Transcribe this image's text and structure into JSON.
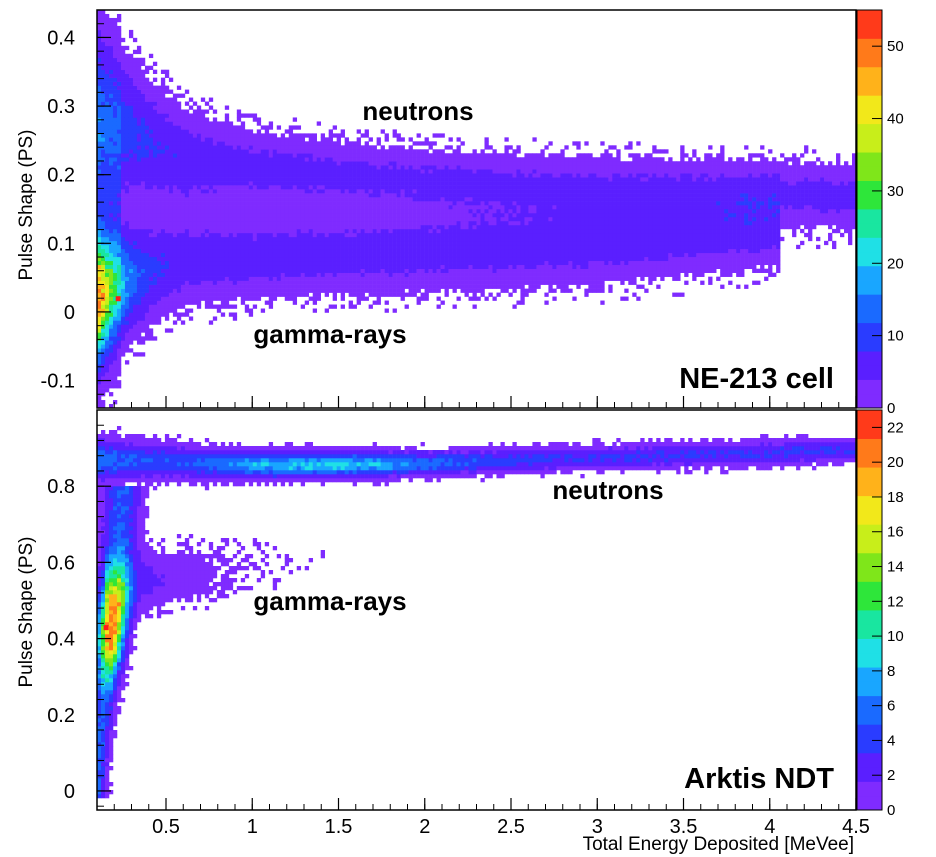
{
  "chart_data": [
    {
      "type": "heatmap",
      "detector_label": "NE-213 cell",
      "ylabel": "Pulse Shape (PS)",
      "xlabel": "Total Energy Deposited [MeVee]",
      "xlim": [
        0.1,
        4.5
      ],
      "ylim": [
        -0.14,
        0.44
      ],
      "x_ticks": [
        "0.5",
        "1",
        "1.5",
        "2",
        "2.5",
        "3",
        "3.5",
        "4",
        "4.5"
      ],
      "y_ticks": [
        "-0.1",
        "0",
        "0.1",
        "0.2",
        "0.3",
        "0.4"
      ],
      "y_tick_values": [
        -0.1,
        0,
        0.1,
        0.2,
        0.3,
        0.4
      ],
      "colorbar": {
        "range": [
          0,
          55
        ],
        "labels": [
          "0",
          "10",
          "20",
          "30",
          "40",
          "50"
        ],
        "label_values": [
          0,
          10,
          20,
          30,
          40,
          50
        ]
      },
      "annotations": [
        "neutrons",
        "gamma-rays"
      ],
      "bands": [
        {
          "name": "neutrons",
          "center": [
            [
              0.15,
              0.3
            ],
            [
              0.5,
              0.23
            ],
            [
              1.0,
              0.21
            ],
            [
              2.0,
              0.19
            ],
            [
              3.0,
              0.18
            ],
            [
              4.5,
              0.17
            ]
          ]
        },
        {
          "name": "gamma-rays",
          "center": [
            [
              0.15,
              0.02
            ],
            [
              0.5,
              0.07
            ],
            [
              1.0,
              0.08
            ],
            [
              2.0,
              0.09
            ],
            [
              3.0,
              0.1
            ],
            [
              4.0,
              0.12
            ]
          ]
        }
      ],
      "peak": {
        "x": 0.22,
        "y": 0.02,
        "value": 55
      }
    },
    {
      "type": "heatmap",
      "detector_label": "Arktis NDT",
      "ylabel": "Pulse Shape (PS)",
      "xlabel": "Total Energy Deposited [MeVee]",
      "xlim": [
        0.1,
        4.5
      ],
      "ylim": [
        -0.05,
        1.0
      ],
      "x_ticks": [
        "0.5",
        "1",
        "1.5",
        "2",
        "2.5",
        "3",
        "3.5",
        "4",
        "4.5"
      ],
      "x_tick_values": [
        0.5,
        1,
        1.5,
        2,
        2.5,
        3,
        3.5,
        4,
        4.5
      ],
      "y_ticks": [
        "0",
        "0.2",
        "0.4",
        "0.6",
        "0.8"
      ],
      "y_tick_values": [
        0,
        0.2,
        0.4,
        0.6,
        0.8
      ],
      "colorbar": {
        "range": [
          0,
          23
        ],
        "labels": [
          "0",
          "2",
          "4",
          "6",
          "8",
          "10",
          "12",
          "14",
          "16",
          "18",
          "20",
          "22"
        ],
        "label_values": [
          0,
          2,
          4,
          6,
          8,
          10,
          12,
          14,
          16,
          18,
          20,
          22
        ]
      },
      "annotations": [
        "neutrons",
        "gamma-rays"
      ],
      "bands": [
        {
          "name": "neutrons",
          "center": [
            [
              0.15,
              0.87
            ],
            [
              1.0,
              0.855
            ],
            [
              2.0,
              0.86
            ],
            [
              3.0,
              0.875
            ],
            [
              4.5,
              0.895
            ]
          ]
        },
        {
          "name": "gamma-rays",
          "center": [
            [
              0.12,
              0.05
            ],
            [
              0.2,
              0.35
            ],
            [
              0.3,
              0.5
            ],
            [
              0.5,
              0.56
            ],
            [
              0.7,
              0.6
            ]
          ]
        }
      ],
      "peak": {
        "x": 0.15,
        "y": 0.43,
        "value": 23
      }
    }
  ]
}
